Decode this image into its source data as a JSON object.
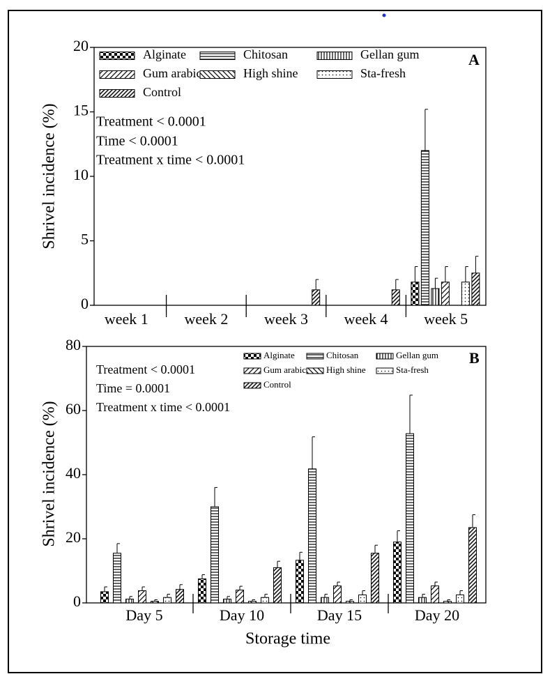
{
  "chart_data": [
    {
      "type": "bar",
      "panel_label": "A",
      "y_label": "Shrivel incidence (%)",
      "annotations": [
        "Treatment < 0.0001",
        "Time < 0.0001",
        "Treatment x time < 0.0001"
      ],
      "legend": "upper left",
      "categories": [
        "week 1",
        "week 2",
        "week 3",
        "week 4",
        "week 5"
      ],
      "series": [
        {
          "name": "Alginate",
          "color": "#000000",
          "values": [
            0,
            0,
            0,
            0,
            1.8
          ],
          "errors": [
            0,
            0,
            0,
            0,
            1.2
          ]
        },
        {
          "name": "Chitosan",
          "color": "#000000",
          "values": [
            0,
            0,
            0,
            0,
            12.0
          ],
          "errors": [
            0,
            0,
            0,
            0,
            3.2
          ]
        },
        {
          "name": "Gellan gum",
          "color": "#000000",
          "values": [
            0,
            0,
            0,
            0,
            1.3
          ],
          "errors": [
            0,
            0,
            0,
            0,
            0.8
          ]
        },
        {
          "name": "Gum arabic",
          "color": "#000000",
          "values": [
            0,
            0,
            0,
            0,
            1.8
          ],
          "errors": [
            0,
            0,
            0,
            0,
            1.2
          ]
        },
        {
          "name": "High shine",
          "color": "#000000",
          "values": [
            0,
            0,
            0,
            0,
            0
          ],
          "errors": [
            0,
            0,
            0,
            0,
            0
          ]
        },
        {
          "name": "Sta-fresh",
          "color": "#000000",
          "values": [
            0,
            0,
            0,
            0,
            1.8
          ],
          "errors": [
            0,
            0,
            0,
            0,
            1.2
          ]
        },
        {
          "name": "Control",
          "color": "#000000",
          "values": [
            0,
            0,
            1.2,
            1.2,
            2.5
          ],
          "errors": [
            0,
            0,
            0.8,
            0.8,
            1.3
          ]
        }
      ],
      "ylim": [
        0,
        20
      ],
      "yticks": [
        0,
        5,
        10,
        15,
        20
      ]
    },
    {
      "type": "bar",
      "panel_label": "B",
      "y_label": "Shrivel incidence (%)",
      "x_label": "Storage time",
      "annotations": [
        "Treatment < 0.0001",
        "Time = 0.0001",
        "Treatment x time < 0.0001"
      ],
      "legend": "upper right",
      "categories": [
        "Day 5",
        "Day 10",
        "Day 15",
        "Day 20"
      ],
      "series": [
        {
          "name": "Alginate",
          "color": "#000000",
          "values": [
            3.5,
            7.5,
            13.3,
            19.0
          ],
          "errors": [
            1.5,
            1.3,
            2.5,
            3.5
          ]
        },
        {
          "name": "Chitosan",
          "color": "#000000",
          "values": [
            15.5,
            30.0,
            41.8,
            52.8
          ],
          "errors": [
            3.0,
            6.0,
            10.0,
            12.0
          ]
        },
        {
          "name": "Gellan gum",
          "color": "#000000",
          "values": [
            1.2,
            1.2,
            1.7,
            1.7
          ],
          "errors": [
            0.8,
            0.8,
            1.0,
            1.0
          ]
        },
        {
          "name": "Gum arabic",
          "color": "#000000",
          "values": [
            3.8,
            4.0,
            5.3,
            5.3
          ],
          "errors": [
            1.2,
            1.2,
            1.2,
            1.2
          ]
        },
        {
          "name": "High shine",
          "color": "#000000",
          "values": [
            0.5,
            0.5,
            0.5,
            0.5
          ],
          "errors": [
            0.5,
            0.5,
            0.5,
            0.5
          ]
        },
        {
          "name": "Sta-fresh",
          "color": "#000000",
          "values": [
            1.7,
            1.7,
            2.5,
            2.5
          ],
          "errors": [
            1.0,
            1.0,
            1.3,
            1.3
          ]
        },
        {
          "name": "Control",
          "color": "#000000",
          "values": [
            4.2,
            11.0,
            15.5,
            23.5
          ],
          "errors": [
            1.5,
            2.0,
            2.5,
            4.0
          ]
        }
      ],
      "ylim": [
        0,
        80
      ],
      "yticks": [
        0,
        20,
        40,
        60,
        80
      ]
    }
  ]
}
